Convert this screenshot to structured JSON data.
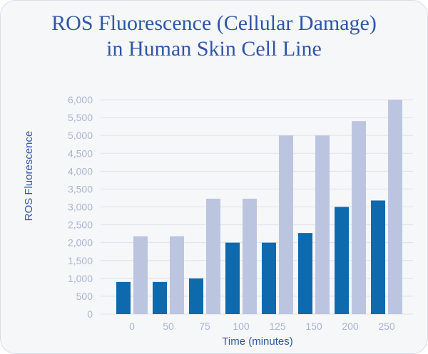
{
  "title_lines": [
    "ROS Fluorescence (Cellular Damage)",
    "in Human Skin Cell Line"
  ],
  "colors": {
    "series_dark": "#0f6aad",
    "series_light": "#bcc5e0",
    "grid": "#dde2ec",
    "title": "#2f56a6",
    "ticks": "#a9b4cf"
  },
  "chart_data": {
    "type": "bar",
    "title": "ROS Fluorescence (Cellular Damage) in Human Skin Cell Line",
    "xlabel": "Time (minutes)",
    "ylabel": "ROS Fluorescence",
    "categories": [
      "0",
      "50",
      "75",
      "100",
      "125",
      "150",
      "200",
      "250"
    ],
    "series": [
      {
        "values": [
          900,
          900,
          1000,
          2000,
          2000,
          2270,
          3000,
          3180
        ]
      },
      {
        "values": [
          2180,
          2180,
          3230,
          3230,
          5000,
          5000,
          5400,
          6000
        ]
      }
    ],
    "ylim": [
      0,
      6000
    ],
    "yticks": [
      "0",
      "500",
      "1,000",
      "1,500",
      "2,000",
      "2,500",
      "3,000",
      "3,500",
      "4,000",
      "4,500",
      "5,000",
      "5,500",
      "6,000"
    ],
    "grid": true,
    "legend": "none"
  }
}
